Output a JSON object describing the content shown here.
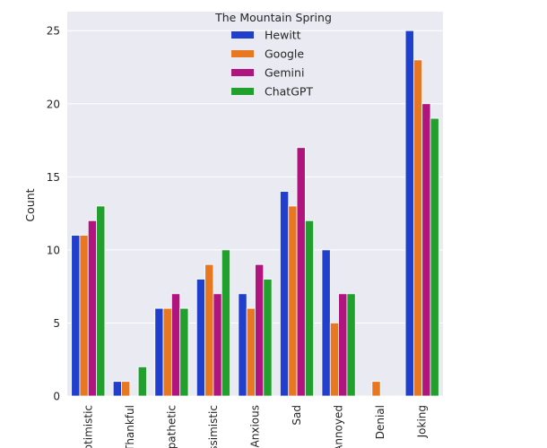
{
  "chart_data": {
    "type": "bar",
    "title": "",
    "xlabel": "",
    "ylabel": "Count",
    "categories": [
      "Optimistic",
      "Thankful",
      "Empathetic",
      "Pessimistic",
      "Anxious",
      "Sad",
      "Annoyed",
      "Denial",
      "Joking"
    ],
    "ylim": [
      0,
      26.3
    ],
    "yticks": [
      0,
      5,
      10,
      15,
      20,
      25
    ],
    "grid": true,
    "legend": {
      "title": "The Mountain Spring",
      "placement": "top-center"
    },
    "series": [
      {
        "name": "Hewitt",
        "color": "#1f3fcc",
        "values": [
          11,
          1,
          6,
          8,
          7,
          14,
          10,
          0,
          25
        ]
      },
      {
        "name": "Google",
        "color": "#e87722",
        "values": [
          11,
          1,
          6,
          9,
          6,
          13,
          5,
          1,
          23
        ]
      },
      {
        "name": "Gemini",
        "color": "#b0147f",
        "values": [
          12,
          0,
          7,
          7,
          9,
          17,
          7,
          0,
          20
        ]
      },
      {
        "name": "ChatGPT",
        "color": "#22a02e",
        "values": [
          13,
          2,
          6,
          10,
          8,
          12,
          7,
          0,
          19
        ]
      }
    ]
  }
}
